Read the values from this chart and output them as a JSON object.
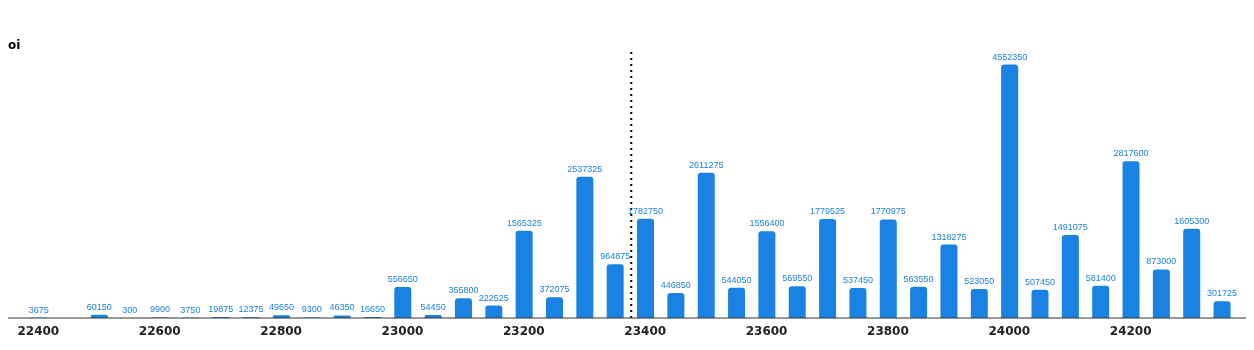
{
  "chart_data": {
    "type": "bar",
    "ylabel": "oi",
    "x": [
      22400,
      22500,
      22550,
      22600,
      22650,
      22700,
      22750,
      22800,
      22850,
      22900,
      22950,
      23000,
      23050,
      23100,
      23150,
      23200,
      23250,
      23300,
      23350,
      23400,
      23450,
      23500,
      23550,
      23600,
      23650,
      23700,
      23750,
      23800,
      23850,
      23900,
      23950,
      24000,
      24050,
      24100,
      24150,
      24200,
      24250,
      24300,
      24350
    ],
    "values": [
      3675,
      60150,
      300,
      9900,
      3750,
      19875,
      12375,
      49650,
      9300,
      46350,
      16650,
      556650,
      54450,
      355800,
      222525,
      1565325,
      372075,
      2537325,
      964875,
      1782750,
      446850,
      2611275,
      544050,
      1556400,
      569550,
      1779525,
      537450,
      1770975,
      563550,
      1318275,
      523050,
      4552350,
      507450,
      1491075,
      581400,
      2817600,
      873000,
      1605300,
      301725
    ],
    "color": "#1a82e2",
    "xlim": [
      22350,
      24390
    ],
    "xticks": [
      22400,
      22600,
      22800,
      23000,
      23200,
      23400,
      23600,
      23800,
      24000,
      24200
    ],
    "ylim": [
      0,
      4850000
    ],
    "tick_labels": "x",
    "data_labels": true,
    "ref_lines": [
      {
        "axis": "x",
        "value": 23377,
        "color": "#000000",
        "line_style": "dotted"
      }
    ]
  }
}
